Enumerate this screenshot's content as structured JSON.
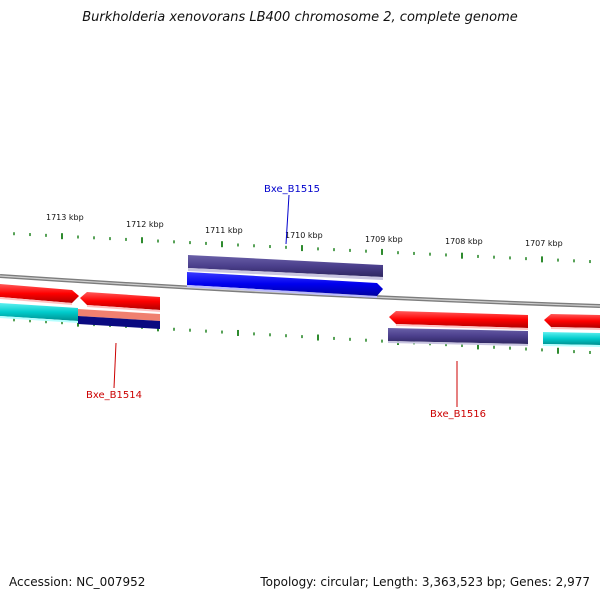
{
  "title": "Burkholderia xenovorans LB400 chromosome 2, complete genome",
  "footer": {
    "accession": "Accession: NC_007952",
    "summary": "Topology: circular; Length: 3,363,523 bp; Genes: 2,977"
  },
  "ruler_labels": [
    "1713 kbp",
    "1712 kbp",
    "1711 kbp",
    "1710 kbp",
    "1709 kbp",
    "1708 kbp",
    "1707 kbp"
  ],
  "gene_labels": [
    {
      "text": "Bxe_B1515",
      "color": "#0000cc"
    },
    {
      "text": "Bxe_B1514",
      "color": "#cc0000"
    },
    {
      "text": "Bxe_B1516",
      "color": "#cc0000"
    }
  ],
  "colors": {
    "backbone": "#8a8a8a",
    "tick": "#2e8b2e",
    "forward_cds": "#ff0000",
    "reverse_cds": "#0000ee",
    "gene_bar": "#4b3f8c",
    "rna": "#00cccc",
    "navy": "#0a0a80",
    "salmon": "#f08070"
  }
}
